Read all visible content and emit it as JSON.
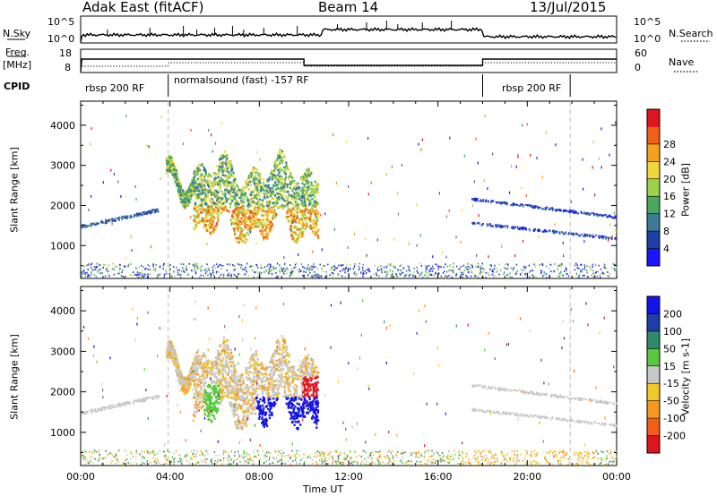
{
  "header": {
    "title": "Adak East (fitACF)",
    "beam": "Beam 14",
    "date": "13/Jul/2015"
  },
  "labels": {
    "nsky": "N.Sky",
    "nsearch": "N.Search",
    "freq": "Freq.",
    "freq_unit": "[MHz]",
    "nave": "Nave",
    "cpid": "CPID",
    "slant_range": "Slant Range [km]",
    "time_axis": "Time UT"
  },
  "status_axes": {
    "nsky_ticks": [
      "10^5",
      "10^0"
    ],
    "nsearch_ticks": [
      "10^5",
      "10^0"
    ],
    "freq_ticks": [
      "18",
      "8"
    ],
    "nave_ticks": [
      "60",
      "0"
    ]
  },
  "cpid_segments": [
    {
      "label": "rbsp 200 RF",
      "start": 0,
      "end": 3.92
    },
    {
      "label": "normalsound (fast) -157 RF",
      "start": 3.92,
      "end": 18.0
    },
    {
      "label": "rbsp 200 RF",
      "start": 18.0,
      "end": 21.92
    }
  ],
  "chart_data": [
    {
      "type": "heatmap",
      "name": "power",
      "ylabel": "Slant Range [km]",
      "xlabel": "Time UT",
      "xlim": [
        0,
        24
      ],
      "ylim": [
        180,
        4600
      ],
      "yticks": [
        1000,
        2000,
        3000,
        4000
      ],
      "xticks": [
        "00:00",
        "04:00",
        "08:00",
        "12:00",
        "16:00",
        "20:00",
        "00:00"
      ],
      "colorbar": {
        "label": "Power [dB]",
        "ticks": [
          "4",
          "8",
          "12",
          "16",
          "20",
          "24",
          "28"
        ],
        "colors": [
          "#1a14ff",
          "#1e3ea8",
          "#3c7a96",
          "#48a85e",
          "#9bd24a",
          "#f0d83c",
          "#f5a020",
          "#f06018",
          "#e0141e"
        ]
      }
    },
    {
      "type": "heatmap",
      "name": "velocity",
      "ylabel": "Slant Range [km]",
      "xlabel": "Time UT",
      "xlim": [
        0,
        24
      ],
      "ylim": [
        180,
        4600
      ],
      "yticks": [
        1000,
        2000,
        3000,
        4000
      ],
      "xticks": [
        "00:00",
        "04:00",
        "08:00",
        "12:00",
        "16:00",
        "20:00",
        "00:00"
      ],
      "colorbar": {
        "label": "Velocity [m s-1]",
        "ticks": [
          "200",
          "100",
          "50",
          "15",
          "-15",
          "-50",
          "-100",
          "-200"
        ],
        "colors": [
          "#1414e6",
          "#1e3ea8",
          "#2e8a6a",
          "#5ac83c",
          "#c8c8c8",
          "#f0c828",
          "#f59a1e",
          "#f06018",
          "#e0141e"
        ]
      }
    }
  ]
}
